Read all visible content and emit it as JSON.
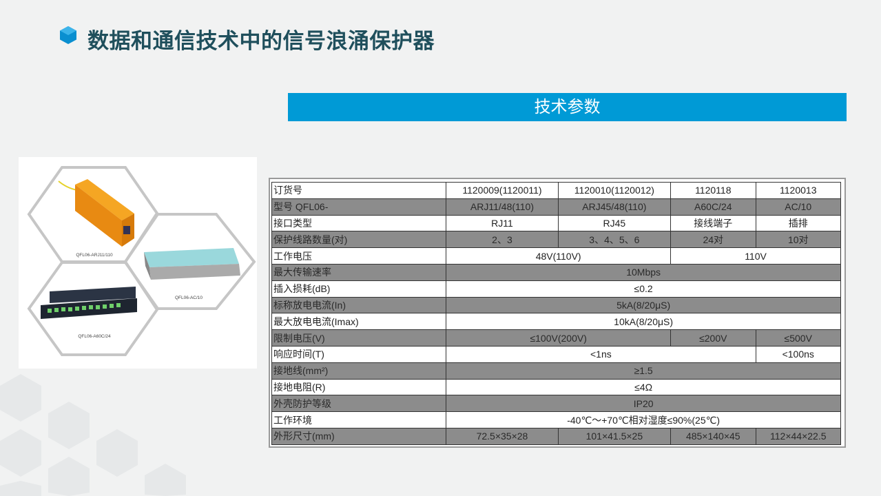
{
  "title": "数据和通信技术中的信号浪涌保护器",
  "section_header": "技术参数",
  "colors": {
    "accent": "#009ad6",
    "title": "#1f4f5c",
    "shaded_row": "#8c8c8c"
  },
  "product_images": [
    {
      "label": "QFL06-ARJ11/110"
    },
    {
      "label": "QFL06-AC/10"
    },
    {
      "label": "QFL06-A60C/24"
    }
  ],
  "table": {
    "rows": [
      {
        "label": "订货号",
        "shade": "light",
        "cells": [
          {
            "text": "1120009(1120011)",
            "span": 1
          },
          {
            "text": "1120010(1120012)",
            "span": 1
          },
          {
            "text": "1120118",
            "span": 1
          },
          {
            "text": "1120013",
            "span": 1
          }
        ]
      },
      {
        "label": "型号  QFL06-",
        "shade": "dark",
        "cells": [
          {
            "text": "ARJ11/48(110)",
            "span": 1
          },
          {
            "text": "ARJ45/48(110)",
            "span": 1
          },
          {
            "text": "A60C/24",
            "span": 1
          },
          {
            "text": "AC/10",
            "span": 1
          }
        ]
      },
      {
        "label": "接口类型",
        "shade": "light",
        "cells": [
          {
            "text": "RJ11",
            "span": 1
          },
          {
            "text": "RJ45",
            "span": 1
          },
          {
            "text": "接线端子",
            "span": 1
          },
          {
            "text": "插排",
            "span": 1
          }
        ]
      },
      {
        "label": "保护线路数量(对)",
        "shade": "dark",
        "cells": [
          {
            "text": "2、3",
            "span": 1
          },
          {
            "text": "3、4、5、6",
            "span": 1
          },
          {
            "text": "24对",
            "span": 1
          },
          {
            "text": "10对",
            "span": 1
          }
        ]
      },
      {
        "label": "工作电压",
        "shade": "light",
        "cells": [
          {
            "text": "48V(110V)",
            "span": 2
          },
          {
            "text": "110V",
            "span": 2
          }
        ]
      },
      {
        "label": "最大传输速率",
        "shade": "dark",
        "cells": [
          {
            "text": "10Mbps",
            "span": 4
          }
        ]
      },
      {
        "label": "插入损耗(dB)",
        "shade": "light",
        "cells": [
          {
            "text": "≤0.2",
            "span": 4
          }
        ]
      },
      {
        "label": "标称放电电流(In)",
        "shade": "dark",
        "cells": [
          {
            "text": "5kA(8/20μS)",
            "span": 4
          }
        ]
      },
      {
        "label": "最大放电电流(Imax)",
        "shade": "light",
        "cells": [
          {
            "text": "10kA(8/20μS)",
            "span": 4
          }
        ]
      },
      {
        "label": "限制电压(V)",
        "shade": "dark",
        "cells": [
          {
            "text": "≤100V(200V)",
            "span": 2
          },
          {
            "text": "≤200V",
            "span": 1
          },
          {
            "text": "≤500V",
            "span": 1
          }
        ]
      },
      {
        "label": "响应时间(T)",
        "shade": "light",
        "cells": [
          {
            "text": "<1ns",
            "span": 3
          },
          {
            "text": "<100ns",
            "span": 1
          }
        ]
      },
      {
        "label": "接地线(mm²)",
        "shade": "dark",
        "cells": [
          {
            "text": "≥1.5",
            "span": 4
          }
        ]
      },
      {
        "label": "接地电阻(R)",
        "shade": "light",
        "cells": [
          {
            "text": "≤4Ω",
            "span": 4
          }
        ]
      },
      {
        "label": "外壳防护等级",
        "shade": "dark",
        "cells": [
          {
            "text": "IP20",
            "span": 4
          }
        ]
      },
      {
        "label": "工作环境",
        "shade": "light",
        "cells": [
          {
            "text": "-40℃～+70℃相对湿度≤90%(25℃)",
            "span": 4
          }
        ]
      },
      {
        "label": "外形尺寸(mm)",
        "shade": "dark",
        "cells": [
          {
            "text": "72.5×35×28",
            "span": 1
          },
          {
            "text": "101×41.5×25",
            "span": 1
          },
          {
            "text": "485×140×45",
            "span": 1
          },
          {
            "text": "112×44×22.5",
            "span": 1
          }
        ]
      }
    ]
  }
}
